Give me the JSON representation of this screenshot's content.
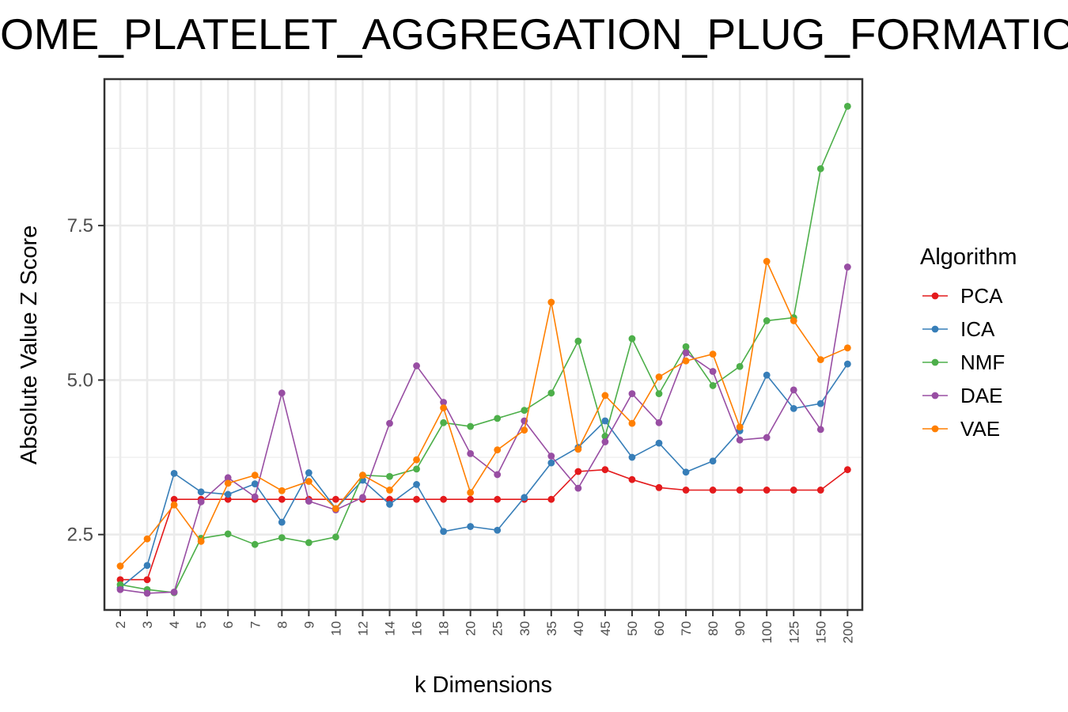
{
  "chart_data": {
    "type": "line",
    "title": "OME_PLATELET_AGGREGATION_PLUG_FORMATIO",
    "xlabel": "k Dimensions",
    "ylabel": "Absolute Value Z Score",
    "categories": [
      "2",
      "3",
      "4",
      "5",
      "6",
      "7",
      "8",
      "9",
      "10",
      "12",
      "14",
      "16",
      "18",
      "20",
      "25",
      "30",
      "35",
      "40",
      "45",
      "50",
      "60",
      "70",
      "80",
      "90",
      "100",
      "125",
      "150",
      "200"
    ],
    "yticks": [
      2.5,
      5.0,
      7.5
    ],
    "ytick_labels": [
      "2.5",
      "5.0",
      "7.5"
    ],
    "ylim": [
      1.28,
      9.87
    ],
    "grid": true,
    "legend": {
      "title": "Algorithm",
      "position": "right"
    },
    "series": [
      {
        "name": "PCA",
        "color": "#e41a1c",
        "values": [
          1.77,
          1.77,
          3.07,
          3.07,
          3.07,
          3.07,
          3.07,
          3.07,
          3.07,
          3.07,
          3.07,
          3.07,
          3.07,
          3.07,
          3.07,
          3.07,
          3.07,
          3.52,
          3.55,
          3.39,
          3.26,
          3.22,
          3.22,
          3.22,
          3.22,
          3.22,
          3.22,
          3.55
        ]
      },
      {
        "name": "ICA",
        "color": "#377eb8",
        "values": [
          1.64,
          2.0,
          3.49,
          3.19,
          3.15,
          3.32,
          2.7,
          3.5,
          2.92,
          3.38,
          2.99,
          3.31,
          2.55,
          2.63,
          2.57,
          3.1,
          3.66,
          3.91,
          4.34,
          3.75,
          3.98,
          3.51,
          3.69,
          4.18,
          5.08,
          4.54,
          4.62,
          5.26
        ]
      },
      {
        "name": "NMF",
        "color": "#4daf4a",
        "values": [
          1.69,
          1.61,
          1.56,
          2.44,
          2.51,
          2.34,
          2.45,
          2.37,
          2.46,
          3.46,
          3.44,
          3.56,
          4.31,
          4.25,
          4.38,
          4.51,
          4.79,
          5.63,
          4.09,
          5.67,
          4.78,
          5.54,
          4.91,
          5.22,
          5.96,
          6.01,
          8.42,
          9.43
        ]
      },
      {
        "name": "DAE",
        "color": "#984ea3",
        "values": [
          1.61,
          1.55,
          1.57,
          3.03,
          3.42,
          3.11,
          4.79,
          3.04,
          2.9,
          3.1,
          4.3,
          5.23,
          4.64,
          3.81,
          3.47,
          4.34,
          3.77,
          3.25,
          4.0,
          4.78,
          4.31,
          5.44,
          5.14,
          4.03,
          4.07,
          4.84,
          4.2,
          6.83
        ]
      },
      {
        "name": "VAE",
        "color": "#ff7f00",
        "values": [
          1.99,
          2.43,
          2.98,
          2.39,
          3.33,
          3.46,
          3.21,
          3.36,
          2.92,
          3.46,
          3.22,
          3.71,
          4.55,
          3.18,
          3.87,
          4.19,
          6.26,
          3.88,
          4.75,
          4.3,
          5.05,
          5.31,
          5.42,
          4.24,
          6.92,
          5.96,
          5.33,
          5.52
        ]
      }
    ]
  }
}
